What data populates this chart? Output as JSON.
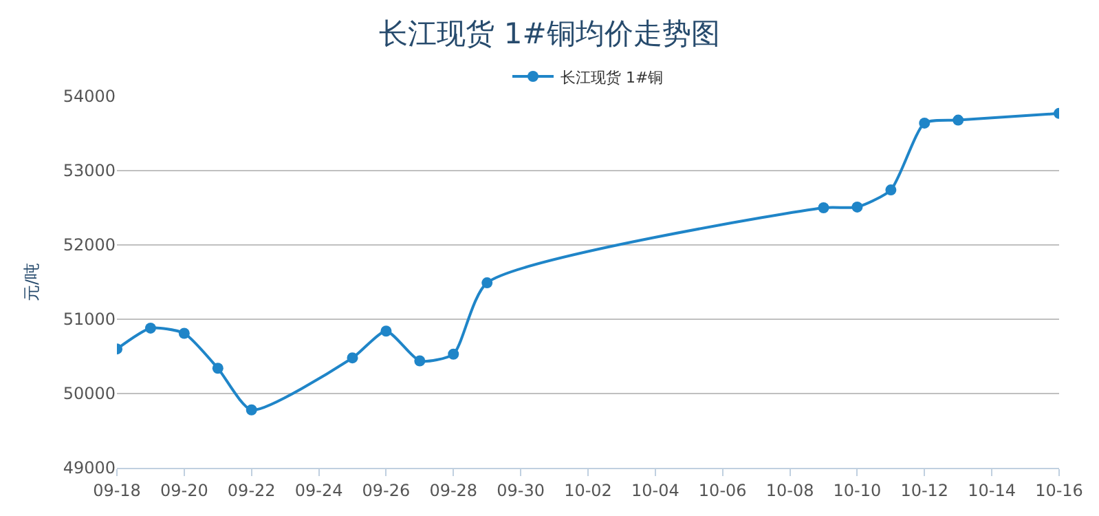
{
  "chart_data": {
    "type": "line",
    "title": "长江现货 1#铜均价走势图",
    "ylabel": "元/吨",
    "x": [
      "--09-18",
      "--09-19",
      "--09-20",
      "--09-21",
      "--09-22",
      "--09-25",
      "--09-26",
      "--09-27",
      "--09-28",
      "--09-29",
      "--10-09",
      "--10-10",
      "--10-11",
      "--10-12",
      "--10-13",
      "--10-16"
    ],
    "series": [
      {
        "name": "长江现货 1#铜",
        "color": "#1f85c8",
        "values": [
          50600,
          50880,
          50810,
          50340,
          49780,
          50480,
          50840,
          50440,
          50530,
          51490,
          52500,
          52510,
          52740,
          53640,
          53680,
          53770
        ]
      }
    ],
    "xlim": [
      "--09-18",
      "--10-16"
    ],
    "xticks": [
      {
        "value": "--09-18",
        "label": "09-18"
      },
      {
        "value": "--09-20",
        "label": "09-20"
      },
      {
        "value": "--09-22",
        "label": "09-22"
      },
      {
        "value": "--09-24",
        "label": "09-24"
      },
      {
        "value": "--09-26",
        "label": "09-26"
      },
      {
        "value": "--09-28",
        "label": "09-28"
      },
      {
        "value": "--09-30",
        "label": "09-30"
      },
      {
        "value": "--10-02",
        "label": "10-02"
      },
      {
        "value": "--10-04",
        "label": "10-04"
      },
      {
        "value": "--10-06",
        "label": "10-06"
      },
      {
        "value": "--10-08",
        "label": "10-08"
      },
      {
        "value": "--10-10",
        "label": "10-10"
      },
      {
        "value": "--10-12",
        "label": "10-12"
      },
      {
        "value": "--10-14",
        "label": "10-14"
      },
      {
        "value": "--10-16",
        "label": "10-16"
      }
    ],
    "ylim": [
      49000,
      54000
    ],
    "yticks": [
      49000,
      50000,
      51000,
      52000,
      53000,
      54000
    ],
    "grid": "y",
    "legend": "top",
    "marker": "circle",
    "line_style": "solid"
  }
}
